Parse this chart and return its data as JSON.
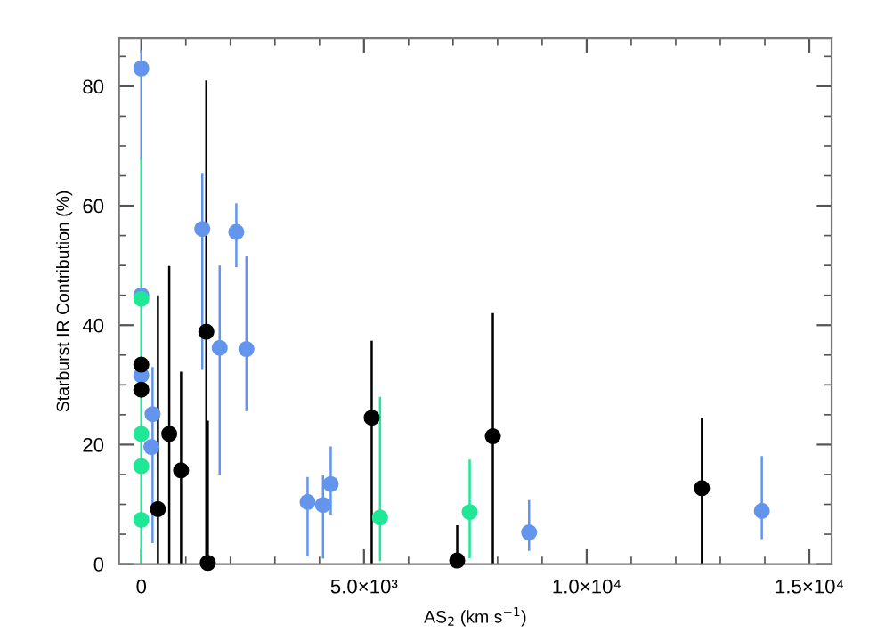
{
  "chart_data": {
    "type": "scatter",
    "xlabel": "AS$_{2}$ (km s$^{−1}$)",
    "ylabel": "Starburst IR Contribution (%)",
    "xlim": [
      -500,
      15500
    ],
    "ylim": [
      0,
      88
    ],
    "xticks": [
      0,
      {
        "value": 1000,
        "label": null
      },
      {
        "value": 2000,
        "label": null
      },
      {
        "value": 3000,
        "label": null
      },
      {
        "value": 4000,
        "label": null
      },
      {
        "value": 5000,
        "label": "5.0×10³"
      },
      {
        "value": 6000,
        "label": null
      },
      {
        "value": 7000,
        "label": null
      },
      {
        "value": 8000,
        "label": null
      },
      {
        "value": 9000,
        "label": null
      },
      {
        "value": 10000,
        "label": "1.0×10⁴"
      },
      {
        "value": 11000,
        "label": null
      },
      {
        "value": 12000,
        "label": null
      },
      {
        "value": 13000,
        "label": null
      },
      {
        "value": 14000,
        "label": null
      },
      {
        "value": 15000,
        "label": "1.5×10⁴"
      }
    ],
    "yticks": [
      0,
      {
        "value": 5,
        "label": null
      },
      {
        "value": 10,
        "label": null
      },
      {
        "value": 15,
        "label": null
      },
      20,
      {
        "value": 25,
        "label": null
      },
      {
        "value": 30,
        "label": null
      },
      {
        "value": 35,
        "label": null
      },
      40,
      {
        "value": 45,
        "label": null
      },
      {
        "value": 50,
        "label": null
      },
      {
        "value": 55,
        "label": null
      },
      60,
      {
        "value": 65,
        "label": null
      },
      {
        "value": 70,
        "label": null
      },
      {
        "value": 75,
        "label": null
      },
      80,
      {
        "value": 85,
        "label": null
      }
    ],
    "grid": false,
    "legend": false,
    "marker": "circle",
    "series": [
      {
        "color": "#6495ed",
        "x": [
          0,
          0,
          0,
          253,
          227,
          1370,
          1760,
          2133,
          2360,
          3733,
          4080,
          4253,
          8707,
          13933
        ],
        "values": [
          83.0,
          45.0,
          31.6,
          25.1,
          19.6,
          56.1,
          36.2,
          55.6,
          36.0,
          10.4,
          9.9,
          13.4,
          5.3,
          8.9
        ],
        "errors": [
          [
            67.6,
            86
          ],
          null,
          null,
          [
            3.5,
            33
          ],
          null,
          [
            32.5,
            65.5
          ],
          [
            15,
            50
          ],
          [
            49.7,
            60.4
          ],
          [
            25.6,
            51.5
          ],
          [
            1.3,
            14.6
          ],
          [
            0.9,
            14.9
          ],
          [
            8.3,
            19.7
          ],
          [
            2.2,
            10.7
          ],
          [
            4.2,
            18.1
          ]
        ]
      },
      {
        "color": "#1ee896",
        "x": [
          0,
          0,
          0,
          0,
          5360,
          7373
        ],
        "values": [
          44.4,
          21.8,
          16.4,
          7.4,
          7.8,
          8.7
        ],
        "errors": [
          [
            0,
            68
          ],
          null,
          null,
          null,
          [
            0.5,
            28
          ],
          [
            1.0,
            17.5
          ]
        ]
      },
      {
        "color": "#000000",
        "x": [
          0,
          0,
          373,
          627,
          893,
          1460,
          1493,
          5173,
          7093,
          7893,
          12587
        ],
        "values": [
          33.4,
          29.2,
          9.2,
          21.8,
          15.7,
          38.9,
          0.2,
          24.5,
          0.6,
          21.4,
          12.7
        ],
        "errors": [
          null,
          null,
          [
            0,
            45
          ],
          [
            0,
            49.9
          ],
          [
            0,
            32.2
          ],
          [
            0,
            81
          ],
          [
            0,
            24
          ],
          [
            0,
            37.4
          ],
          [
            0,
            6.5
          ],
          [
            0,
            42.0
          ],
          [
            0,
            24.4
          ]
        ]
      }
    ]
  }
}
